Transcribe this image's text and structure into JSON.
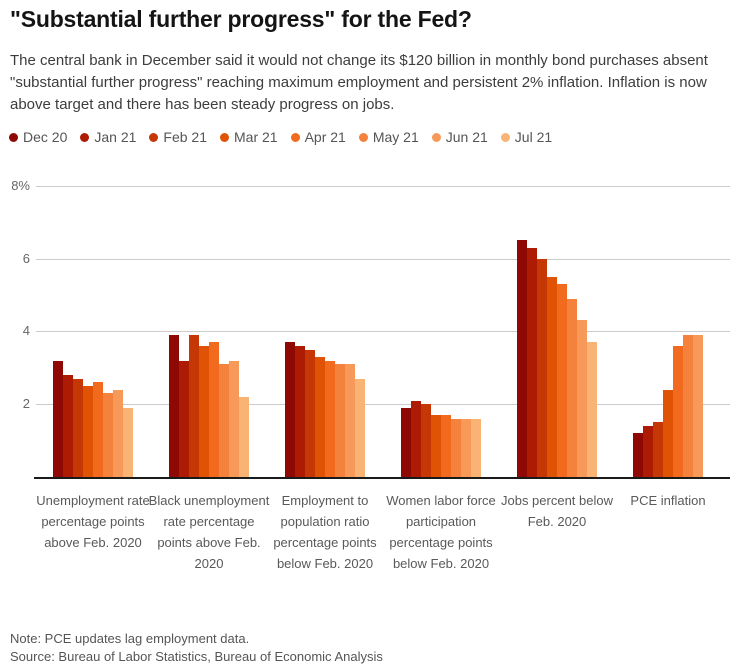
{
  "header": {
    "title": "\"Substantial further progress\" for the Fed?",
    "subtitle": "The central bank in December said it would not change its $120 billion in monthly bond purchases absent \"substantial further progress\" reaching maximum employment and persistent 2% inflation. Inflation is now above target and there has been steady progress on jobs."
  },
  "chart_data": {
    "type": "bar",
    "title": "\"Substantial further progress\" for the Fed?",
    "xlabel": "",
    "ylabel": "",
    "ylim": [
      0,
      8
    ],
    "grid": true,
    "legend_position": "top",
    "yticks": [
      {
        "value": 8,
        "label": "8%"
      },
      {
        "value": 6,
        "label": "6"
      },
      {
        "value": 4,
        "label": "4"
      },
      {
        "value": 2,
        "label": "2"
      }
    ],
    "colors": [
      "#8e0903",
      "#ad1b04",
      "#c53806",
      "#e05305",
      "#f26a1e",
      "#f5823c",
      "#f79a59",
      "#f9b374"
    ],
    "categories": [
      "Unemployment rate percentage points above Feb. 2020",
      "Black unemployment rate percentage points above Feb. 2020",
      "Employment to population ratio percentage points below Feb. 2020",
      "Women labor force participation percentage points below Feb. 2020",
      "Jobs percent below Feb. 2020",
      "PCE inflation"
    ],
    "series": [
      {
        "name": "Dec 20",
        "values": [
          3.2,
          3.9,
          3.7,
          1.9,
          6.5,
          1.2
        ]
      },
      {
        "name": "Jan 21",
        "values": [
          2.8,
          3.2,
          3.6,
          2.1,
          6.3,
          1.4
        ]
      },
      {
        "name": "Feb 21",
        "values": [
          2.7,
          3.9,
          3.5,
          2.0,
          6.0,
          1.5
        ]
      },
      {
        "name": "Mar 21",
        "values": [
          2.5,
          3.6,
          3.3,
          1.7,
          5.5,
          2.4
        ]
      },
      {
        "name": "Apr 21",
        "values": [
          2.6,
          3.7,
          3.2,
          1.7,
          5.3,
          3.6
        ]
      },
      {
        "name": "May 21",
        "values": [
          2.3,
          3.1,
          3.1,
          1.6,
          4.9,
          3.9
        ]
      },
      {
        "name": "Jun 21",
        "values": [
          2.4,
          3.2,
          3.1,
          1.6,
          4.3,
          3.9
        ]
      },
      {
        "name": "Jul 21",
        "values": [
          1.9,
          2.2,
          2.7,
          1.6,
          3.7,
          null
        ]
      }
    ]
  },
  "footer": {
    "note": "Note: PCE updates lag employment data.",
    "source": "Source: Bureau of Labor Statistics, Bureau of Economic Analysis"
  }
}
